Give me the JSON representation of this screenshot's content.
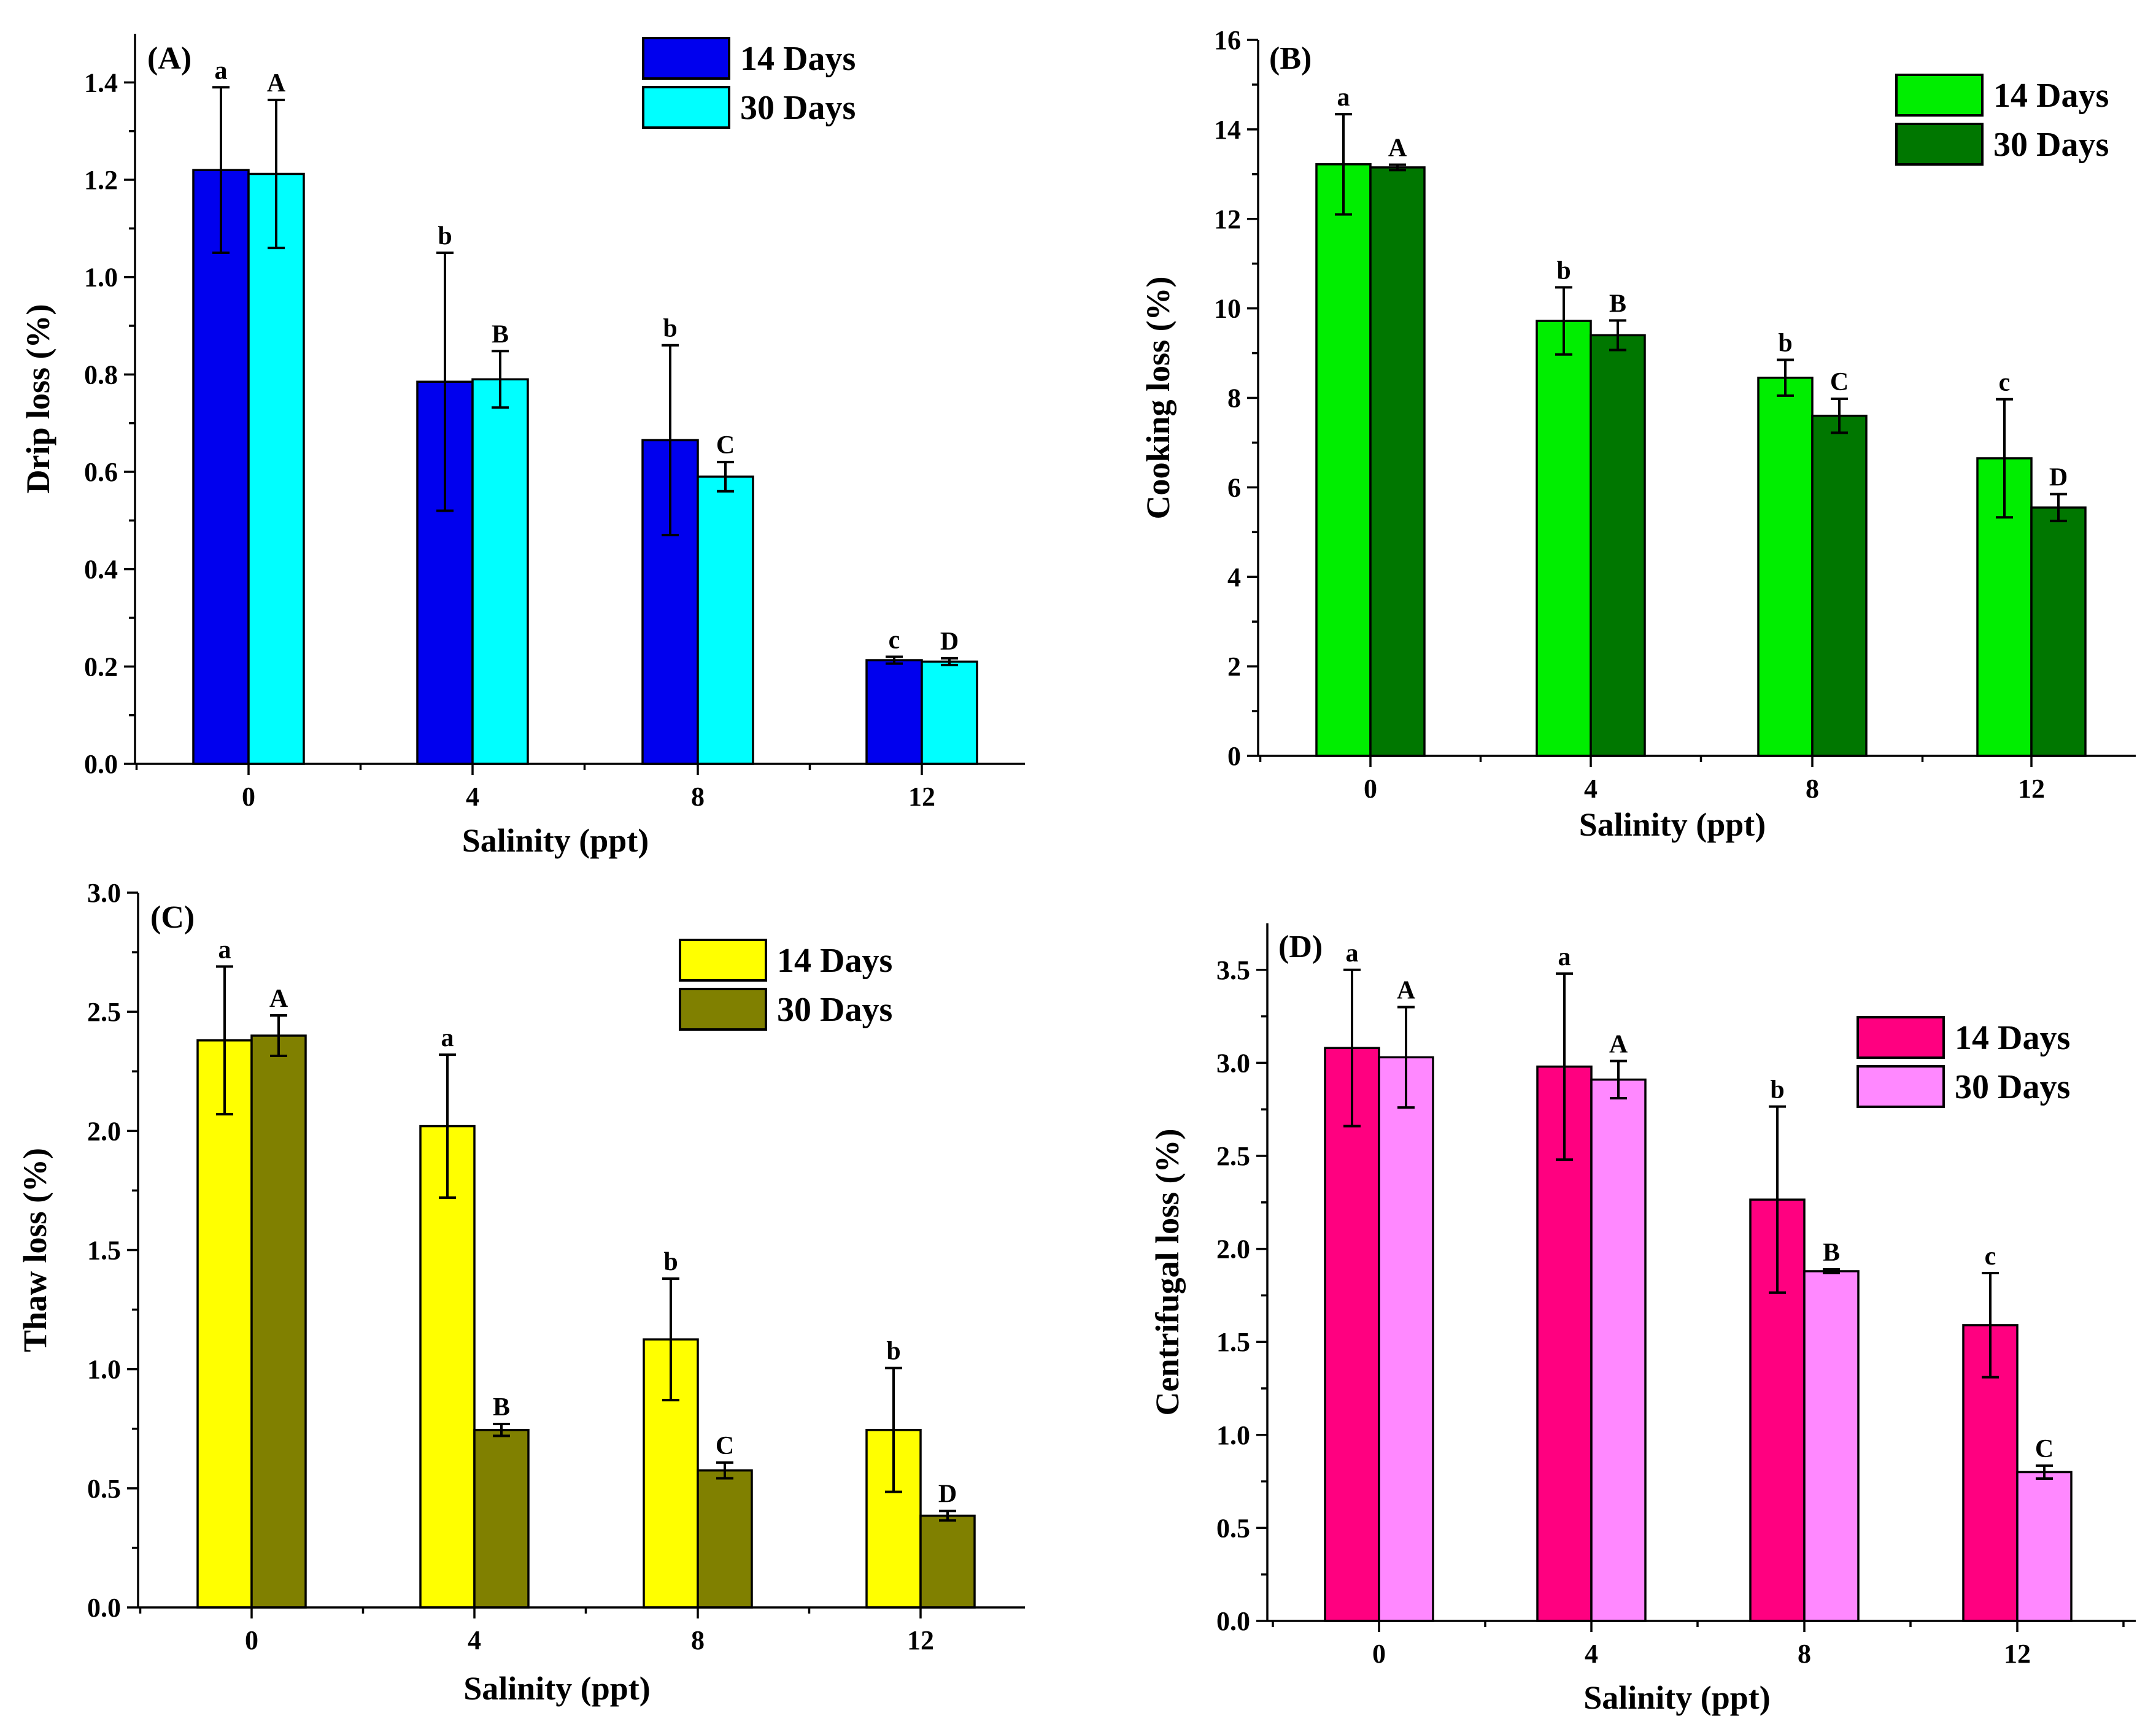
{
  "chart_data": [
    {
      "id": "A",
      "type": "bar",
      "panel_label": "(A)",
      "xlabel": "Salinity (ppt)",
      "ylabel": "Drip loss (%)",
      "categories": [
        "0",
        "4",
        "8",
        "12"
      ],
      "ylim": [
        0,
        1.5
      ],
      "yticks": [
        0.0,
        0.2,
        0.4,
        0.6,
        0.8,
        1.0,
        1.2,
        1.4
      ],
      "ytick_labels": [
        "0.0",
        "0.2",
        "0.4",
        "0.6",
        "0.8",
        "1.0",
        "1.2",
        "1.4"
      ],
      "legend_position": "top-right",
      "series": [
        {
          "name": "14 Days",
          "color": "#0000ee",
          "values": [
            1.22,
            0.785,
            0.665,
            0.213
          ],
          "errors": [
            0.17,
            0.265,
            0.195,
            0.007
          ],
          "letters": [
            "a",
            "b",
            "b",
            "c"
          ]
        },
        {
          "name": "30 Days",
          "color": "#00ffff",
          "values": [
            1.212,
            0.79,
            0.59,
            0.21
          ],
          "errors": [
            0.152,
            0.058,
            0.03,
            0.007
          ],
          "letters": [
            "A",
            "B",
            "C",
            "D"
          ]
        }
      ]
    },
    {
      "id": "B",
      "type": "bar",
      "panel_label": "(B)",
      "xlabel": "Salinity (ppt)",
      "ylabel": "Cooking loss (%)",
      "categories": [
        "0",
        "4",
        "8",
        "12"
      ],
      "ylim": [
        0,
        16
      ],
      "yticks": [
        0,
        2,
        4,
        6,
        8,
        10,
        12,
        14,
        16
      ],
      "ytick_labels": [
        "0",
        "2",
        "4",
        "6",
        "8",
        "10",
        "12",
        "14",
        "16"
      ],
      "legend_position": "top-right",
      "series": [
        {
          "name": "14 Days",
          "color": "#00ee00",
          "values": [
            13.22,
            9.72,
            8.45,
            6.65
          ],
          "errors": [
            1.12,
            0.75,
            0.4,
            1.32
          ],
          "letters": [
            "a",
            "b",
            "b",
            "c"
          ]
        },
        {
          "name": "30 Days",
          "color": "#007700",
          "values": [
            13.15,
            9.4,
            7.6,
            5.55
          ],
          "errors": [
            0.06,
            0.33,
            0.38,
            0.3
          ],
          "letters": [
            "A",
            "B",
            "C",
            "D"
          ]
        }
      ]
    },
    {
      "id": "C",
      "type": "bar",
      "panel_label": "(C)",
      "xlabel": "Salinity (ppt)",
      "ylabel": "Thaw loss (%)",
      "categories": [
        "0",
        "4",
        "8",
        "12"
      ],
      "ylim": [
        0,
        3.0
      ],
      "yticks": [
        0.0,
        0.5,
        1.0,
        1.5,
        2.0,
        2.5,
        3.0
      ],
      "ytick_labels": [
        "0.0",
        "0.5",
        "1.0",
        "1.5",
        "2.0",
        "2.5",
        "3.0"
      ],
      "legend_position": "top-right",
      "series": [
        {
          "name": "14 Days",
          "color": "#ffff00",
          "values": [
            2.38,
            2.02,
            1.125,
            0.745
          ],
          "errors": [
            0.31,
            0.3,
            0.255,
            0.26
          ],
          "letters": [
            "a",
            "a",
            "b",
            "b"
          ]
        },
        {
          "name": "30 Days",
          "color": "#808000",
          "values": [
            2.4,
            0.745,
            0.575,
            0.385
          ],
          "errors": [
            0.085,
            0.025,
            0.033,
            0.02
          ],
          "letters": [
            "A",
            "B",
            "C",
            "D"
          ]
        }
      ]
    },
    {
      "id": "D",
      "type": "bar",
      "panel_label": "(D)",
      "xlabel": "Salinity (ppt)",
      "ylabel": "Centrifugal loss (%)",
      "categories": [
        "0",
        "4",
        "8",
        "12"
      ],
      "ylim": [
        0,
        3.75
      ],
      "yticks": [
        0.0,
        0.5,
        1.0,
        1.5,
        2.0,
        2.5,
        3.0,
        3.5
      ],
      "ytick_labels": [
        "0.0",
        "0.5",
        "1.0",
        "1.5",
        "2.0",
        "2.5",
        "3.0",
        "3.5"
      ],
      "legend_position": "top-right",
      "series": [
        {
          "name": "14 Days",
          "color": "#ff0080",
          "values": [
            3.08,
            2.98,
            2.265,
            1.59
          ],
          "errors": [
            0.42,
            0.5,
            0.5,
            0.28
          ],
          "letters": [
            "a",
            "a",
            "b",
            "c"
          ]
        },
        {
          "name": "30 Days",
          "color": "#ff88ff",
          "values": [
            3.03,
            2.91,
            1.88,
            0.8
          ],
          "errors": [
            0.27,
            0.1,
            0.01,
            0.035
          ],
          "letters": [
            "A",
            "A",
            "B",
            "C"
          ]
        }
      ]
    }
  ]
}
